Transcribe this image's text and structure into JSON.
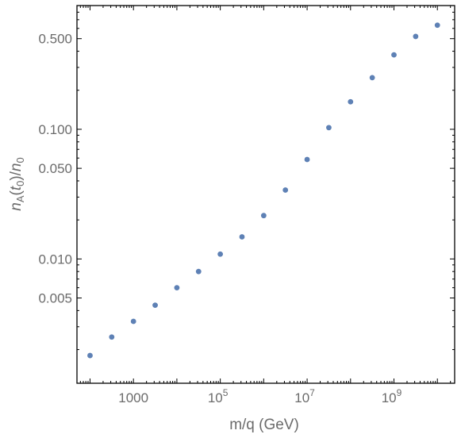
{
  "chart_data": {
    "type": "scatter",
    "xscale": "log",
    "yscale": "log",
    "xlim": [
      50,
      25000000000
    ],
    "ylim": [
      0.0011,
      0.9
    ],
    "xlabel": "m/q (GeV)",
    "ylabel": "n_A(t_0)/n_0",
    "grid": false,
    "color": "#5e81b5",
    "x_ticks": [
      {
        "value": 1000,
        "label": "1000"
      },
      {
        "value": 100000,
        "label": "10^5"
      },
      {
        "value": 10000000,
        "label": "10^7"
      },
      {
        "value": 1000000000,
        "label": "10^9"
      }
    ],
    "y_ticks": [
      {
        "value": 0.005,
        "label": "0.005"
      },
      {
        "value": 0.01,
        "label": "0.010"
      },
      {
        "value": 0.05,
        "label": "0.050"
      },
      {
        "value": 0.1,
        "label": "0.100"
      },
      {
        "value": 0.5,
        "label": "0.500"
      }
    ],
    "x": [
      100,
      316,
      1000,
      3162,
      10000,
      31623,
      100000,
      316228,
      1000000,
      3162278,
      10000000,
      31622777,
      100000000,
      316227766,
      1000000000,
      3162277660,
      10000000000
    ],
    "y": [
      0.0018,
      0.0025,
      0.0033,
      0.0044,
      0.006,
      0.008,
      0.0109,
      0.0148,
      0.0216,
      0.034,
      0.0585,
      0.103,
      0.163,
      0.25,
      0.375,
      0.52,
      0.635
    ]
  }
}
